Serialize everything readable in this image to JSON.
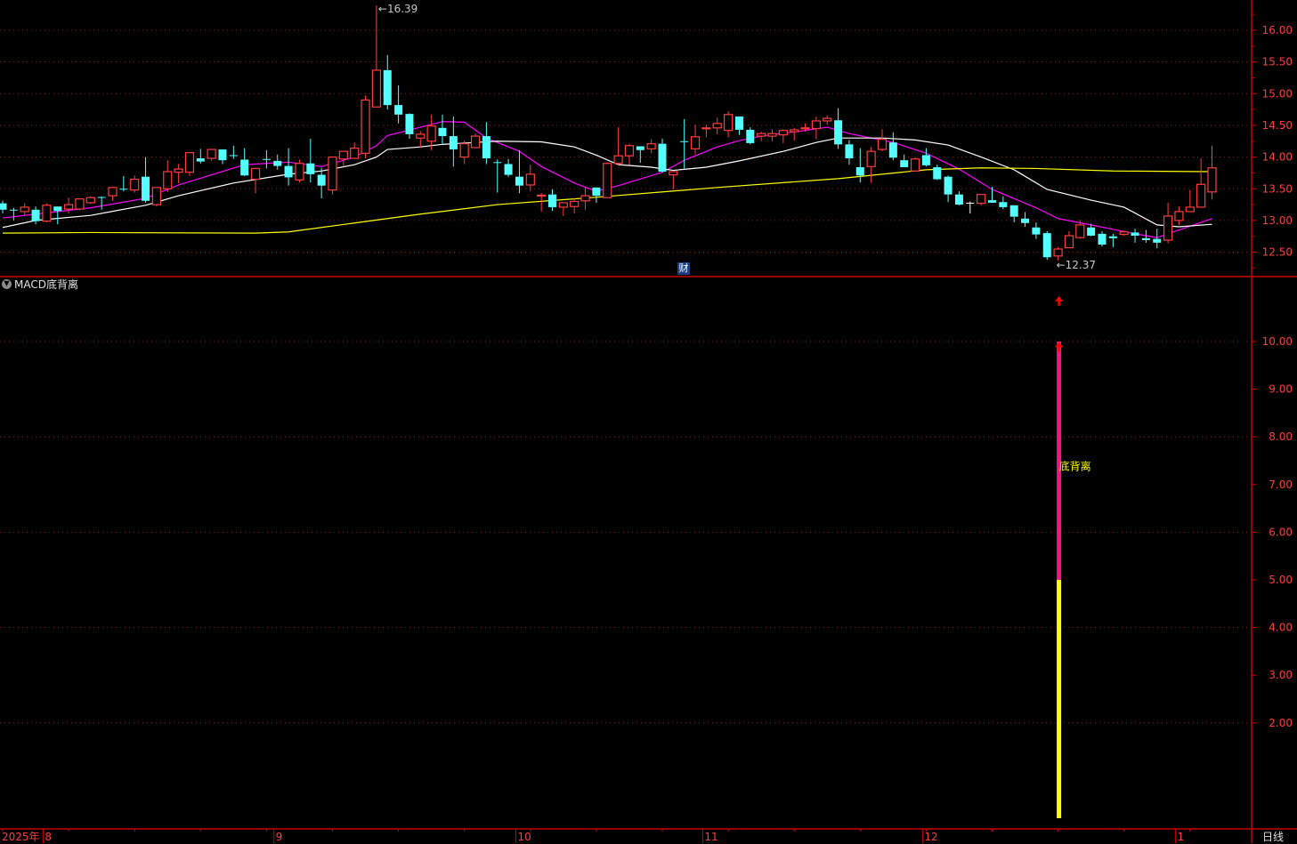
{
  "colors": {
    "up": "#ff3c3c",
    "down": "#54ffff",
    "flat": "#ffffff",
    "ma_short": "#ff00ff",
    "ma_mid": "#ffffff",
    "ma_long": "#ffff00",
    "axis": "#ff3c3c",
    "grid": "#8b1a1a",
    "frame": "#c80000",
    "bar_low": "#ffff00",
    "bar_high": "#ff1080",
    "signal": "#ff0000",
    "signal_text": "#ffff00"
  },
  "indicator": {
    "title": "MACD底背离",
    "icon": "chevron-down-icon",
    "signal_label": "底背离"
  },
  "badge": {
    "label": "财"
  },
  "period_label": "日线",
  "chart_data": [
    {
      "type": "candlestick",
      "ylim": [
        12.3,
        16.45
      ],
      "yticks": [
        "16.00",
        "15.50",
        "15.00",
        "14.50",
        "14.00",
        "13.50",
        "13.00",
        "12.50"
      ],
      "grid": true,
      "high_label": {
        "index": 34,
        "text": "16.39"
      },
      "low_label": {
        "index": 96,
        "text": "12.37"
      },
      "ohlc": [
        [
          13.27,
          13.31,
          13.11,
          13.17
        ],
        [
          13.17,
          13.2,
          13.0,
          13.16
        ],
        [
          13.14,
          13.27,
          13.08,
          13.21
        ],
        [
          13.17,
          13.22,
          12.94,
          12.99
        ],
        [
          12.99,
          13.27,
          12.97,
          13.24
        ],
        [
          13.22,
          13.22,
          12.94,
          13.15
        ],
        [
          13.18,
          13.36,
          13.11,
          13.25
        ],
        [
          13.18,
          13.34,
          13.16,
          13.34
        ],
        [
          13.28,
          13.38,
          13.26,
          13.36
        ],
        [
          13.37,
          13.38,
          13.17,
          13.36
        ],
        [
          13.39,
          13.52,
          13.31,
          13.52
        ],
        [
          13.5,
          13.7,
          13.46,
          13.49
        ],
        [
          13.48,
          13.71,
          13.44,
          13.65
        ],
        [
          13.69,
          14.0,
          13.28,
          13.31
        ],
        [
          13.25,
          13.52,
          13.22,
          13.52
        ],
        [
          13.5,
          13.95,
          13.45,
          13.77
        ],
        [
          13.76,
          13.89,
          13.59,
          13.81
        ],
        [
          13.76,
          14.07,
          13.7,
          14.07
        ],
        [
          13.98,
          14.13,
          13.9,
          13.93
        ],
        [
          13.98,
          14.12,
          13.94,
          14.12
        ],
        [
          14.12,
          14.12,
          13.89,
          13.95
        ],
        [
          14.03,
          14.18,
          13.97,
          14.02
        ],
        [
          13.96,
          14.14,
          13.7,
          13.71
        ],
        [
          13.65,
          13.82,
          13.43,
          13.82
        ],
        [
          13.97,
          14.11,
          13.82,
          13.96
        ],
        [
          13.94,
          14.04,
          13.8,
          13.86
        ],
        [
          13.86,
          14.14,
          13.55,
          13.68
        ],
        [
          13.64,
          13.96,
          13.6,
          13.9
        ],
        [
          13.9,
          14.29,
          13.6,
          13.73
        ],
        [
          13.72,
          13.83,
          13.35,
          13.55
        ],
        [
          13.48,
          14.0,
          13.41,
          14.0
        ],
        [
          13.97,
          14.09,
          13.85,
          14.09
        ],
        [
          13.98,
          14.23,
          13.98,
          14.14
        ],
        [
          14.06,
          14.97,
          13.98,
          14.9
        ],
        [
          14.79,
          16.39,
          14.79,
          15.37
        ],
        [
          15.37,
          15.61,
          14.75,
          14.82
        ],
        [
          14.82,
          15.13,
          14.53,
          14.67
        ],
        [
          14.68,
          14.69,
          14.29,
          14.36
        ],
        [
          14.3,
          14.41,
          14.15,
          14.36
        ],
        [
          14.25,
          14.67,
          14.11,
          14.49
        ],
        [
          14.46,
          14.67,
          14.19,
          14.33
        ],
        [
          14.33,
          14.64,
          13.85,
          14.12
        ],
        [
          14.0,
          14.26,
          13.89,
          14.21
        ],
        [
          14.15,
          14.37,
          14.15,
          14.33
        ],
        [
          14.33,
          14.55,
          13.89,
          13.98
        ],
        [
          13.92,
          13.96,
          13.44,
          13.91
        ],
        [
          13.89,
          13.97,
          13.69,
          13.72
        ],
        [
          13.69,
          14.11,
          13.43,
          13.55
        ],
        [
          13.56,
          13.88,
          13.46,
          13.73
        ],
        [
          13.39,
          13.43,
          13.14,
          13.4
        ],
        [
          13.41,
          13.49,
          13.15,
          13.21
        ],
        [
          13.21,
          13.28,
          13.07,
          13.28
        ],
        [
          13.22,
          13.35,
          13.11,
          13.3
        ],
        [
          13.31,
          13.53,
          13.17,
          13.39
        ],
        [
          13.52,
          13.52,
          13.28,
          13.39
        ],
        [
          13.36,
          13.92,
          13.36,
          13.9
        ],
        [
          13.9,
          14.47,
          13.87,
          14.02
        ],
        [
          14.02,
          14.21,
          13.88,
          14.18
        ],
        [
          14.17,
          14.17,
          13.91,
          14.11
        ],
        [
          14.13,
          14.28,
          14.06,
          14.21
        ],
        [
          14.21,
          14.29,
          13.76,
          13.77
        ],
        [
          13.72,
          13.77,
          13.49,
          13.77
        ],
        [
          14.25,
          14.6,
          13.82,
          14.24
        ],
        [
          14.13,
          14.51,
          14.04,
          14.32
        ],
        [
          14.45,
          14.51,
          14.31,
          14.46
        ],
        [
          14.46,
          14.62,
          14.36,
          14.53
        ],
        [
          14.42,
          14.72,
          14.31,
          14.67
        ],
        [
          14.64,
          14.64,
          14.35,
          14.43
        ],
        [
          14.43,
          14.47,
          14.2,
          14.22
        ],
        [
          14.33,
          14.4,
          14.25,
          14.37
        ],
        [
          14.33,
          14.44,
          14.25,
          14.37
        ],
        [
          14.35,
          14.44,
          14.22,
          14.42
        ],
        [
          14.4,
          14.46,
          14.26,
          14.43
        ],
        [
          14.45,
          14.53,
          14.4,
          14.46
        ],
        [
          14.45,
          14.64,
          14.28,
          14.57
        ],
        [
          14.57,
          14.66,
          14.51,
          14.61
        ],
        [
          14.58,
          14.77,
          14.13,
          14.2
        ],
        [
          14.2,
          14.27,
          13.88,
          13.98
        ],
        [
          13.84,
          14.14,
          13.6,
          13.71
        ],
        [
          13.85,
          14.16,
          13.59,
          14.09
        ],
        [
          14.12,
          14.44,
          14.09,
          14.28
        ],
        [
          14.23,
          14.39,
          13.95,
          13.99
        ],
        [
          13.95,
          14.04,
          13.84,
          13.84
        ],
        [
          13.78,
          14.0,
          13.78,
          13.97
        ],
        [
          14.03,
          14.14,
          13.85,
          13.87
        ],
        [
          13.84,
          13.88,
          13.64,
          13.65
        ],
        [
          13.69,
          13.71,
          13.29,
          13.41
        ],
        [
          13.41,
          13.46,
          13.24,
          13.25
        ],
        [
          13.28,
          13.3,
          13.11,
          13.28
        ],
        [
          13.27,
          13.41,
          13.24,
          13.41
        ],
        [
          13.32,
          13.53,
          13.28,
          13.28
        ],
        [
          13.29,
          13.38,
          13.18,
          13.21
        ],
        [
          13.24,
          13.24,
          12.97,
          13.06
        ],
        [
          13.03,
          13.13,
          12.9,
          12.96
        ],
        [
          12.89,
          12.97,
          12.71,
          12.78
        ],
        [
          12.8,
          12.83,
          12.38,
          12.42
        ],
        [
          12.44,
          12.58,
          12.37,
          12.55
        ],
        [
          12.57,
          12.83,
          12.57,
          12.76
        ],
        [
          12.73,
          13.01,
          12.71,
          12.93
        ],
        [
          12.89,
          12.95,
          12.75,
          12.76
        ],
        [
          12.79,
          12.83,
          12.59,
          12.62
        ],
        [
          12.75,
          12.79,
          12.58,
          12.72
        ],
        [
          12.78,
          12.84,
          12.76,
          12.82
        ],
        [
          12.81,
          12.87,
          12.65,
          12.76
        ],
        [
          12.72,
          12.85,
          12.65,
          12.69
        ],
        [
          12.71,
          12.87,
          12.56,
          12.65
        ],
        [
          12.69,
          13.28,
          12.64,
          13.07
        ],
        [
          13.0,
          13.22,
          12.93,
          13.14
        ],
        [
          13.14,
          13.48,
          13.14,
          13.21
        ],
        [
          13.21,
          13.98,
          13.21,
          13.57
        ],
        [
          13.45,
          14.18,
          13.33,
          13.83
        ]
      ],
      "moving_averages": [
        {
          "color_key": "ma_short",
          "points": [
            [
              0,
              13.04
            ],
            [
              4,
              13.12
            ],
            [
              8,
              13.2
            ],
            [
              13,
              13.35
            ],
            [
              16,
              13.56
            ],
            [
              19,
              13.72
            ],
            [
              22,
              13.88
            ],
            [
              26,
              13.92
            ],
            [
              29,
              13.85
            ],
            [
              32,
              14.0
            ],
            [
              34,
              14.18
            ],
            [
              35,
              14.34
            ],
            [
              38,
              14.47
            ],
            [
              40,
              14.56
            ],
            [
              42,
              14.55
            ],
            [
              44,
              14.3
            ],
            [
              47,
              14.09
            ],
            [
              49,
              13.85
            ],
            [
              52,
              13.59
            ],
            [
              54,
              13.46
            ],
            [
              56,
              13.55
            ],
            [
              60,
              13.76
            ],
            [
              62,
              13.95
            ],
            [
              65,
              14.16
            ],
            [
              67,
              14.26
            ],
            [
              69,
              14.33
            ],
            [
              73,
              14.42
            ],
            [
              75,
              14.47
            ],
            [
              77,
              14.37
            ],
            [
              81,
              14.23
            ],
            [
              84,
              14.06
            ],
            [
              87,
              13.81
            ],
            [
              90,
              13.49
            ],
            [
              94,
              13.2
            ],
            [
              96,
              13.03
            ],
            [
              99,
              12.93
            ],
            [
              103,
              12.79
            ],
            [
              105,
              12.73
            ],
            [
              107,
              12.85
            ],
            [
              110,
              13.03
            ]
          ]
        },
        {
          "color_key": "ma_mid",
          "points": [
            [
              0,
              12.89
            ],
            [
              3,
              13.0
            ],
            [
              8,
              13.08
            ],
            [
              13,
              13.24
            ],
            [
              16,
              13.39
            ],
            [
              21,
              13.59
            ],
            [
              26,
              13.73
            ],
            [
              29,
              13.78
            ],
            [
              32,
              13.88
            ],
            [
              34,
              14.0
            ],
            [
              35,
              14.12
            ],
            [
              38,
              14.16
            ],
            [
              40,
              14.2
            ],
            [
              43,
              14.23
            ],
            [
              45,
              14.25
            ],
            [
              49,
              14.24
            ],
            [
              52,
              14.16
            ],
            [
              54,
              14.03
            ],
            [
              56,
              13.88
            ],
            [
              59,
              13.84
            ],
            [
              61,
              13.79
            ],
            [
              64,
              13.84
            ],
            [
              67,
              13.94
            ],
            [
              71,
              14.09
            ],
            [
              74,
              14.23
            ],
            [
              76,
              14.3
            ],
            [
              80,
              14.3
            ],
            [
              83,
              14.27
            ],
            [
              86,
              14.19
            ],
            [
              89,
              14.0
            ],
            [
              92,
              13.8
            ],
            [
              95,
              13.49
            ],
            [
              99,
              13.32
            ],
            [
              102,
              13.21
            ],
            [
              105,
              12.93
            ],
            [
              107,
              12.9
            ],
            [
              110,
              12.94
            ]
          ]
        },
        {
          "color_key": "ma_long",
          "points": [
            [
              0,
              12.8
            ],
            [
              8,
              12.81
            ],
            [
              23,
              12.8
            ],
            [
              26,
              12.82
            ],
            [
              32,
              12.96
            ],
            [
              38,
              13.1
            ],
            [
              45,
              13.25
            ],
            [
              55,
              13.38
            ],
            [
              65,
              13.52
            ],
            [
              76,
              13.66
            ],
            [
              84,
              13.8
            ],
            [
              89,
              13.83
            ],
            [
              94,
              13.82
            ],
            [
              101,
              13.78
            ],
            [
              110,
              13.77
            ]
          ]
        }
      ]
    },
    {
      "type": "bar",
      "title": "MACD底背离",
      "ylim": [
        0,
        11.5
      ],
      "yticks": [
        "10.00",
        "9.00",
        "8.00",
        "7.00",
        "6.00",
        "5.00",
        "4.00",
        "3.00",
        "2.00"
      ],
      "signal_index": 96,
      "segments": [
        {
          "from": 0,
          "to": 5,
          "color_key": "bar_low"
        },
        {
          "from": 5,
          "to": 10,
          "color_key": "bar_high"
        }
      ],
      "arrows": [
        9.9,
        10.86
      ],
      "label_value": 7.4
    }
  ],
  "x_axis": {
    "year_label": "2025年",
    "months": [
      {
        "label": "8",
        "index": 4
      },
      {
        "label": "9",
        "index": 25
      },
      {
        "label": "10",
        "index": 47
      },
      {
        "label": "11",
        "index": 64
      },
      {
        "label": "12",
        "index": 84
      },
      {
        "label": "1",
        "index": 107
      }
    ]
  }
}
